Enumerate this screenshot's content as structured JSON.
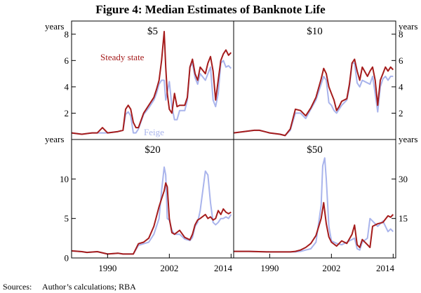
{
  "figure": {
    "title": "Figure 4: Median Estimates of Banknote Life",
    "sources_label": "Sources:",
    "sources_text": "Author’s calculations; RBA",
    "unit_label": "years",
    "colors": {
      "steady_state": "#a51c1c",
      "feige": "#a9b4ec",
      "frame": "#000000"
    }
  },
  "chart_data": [
    {
      "type": "line",
      "title": "$5",
      "panel": "top-left",
      "ylabel": "years",
      "ylim": [
        0,
        9
      ],
      "yticks": [
        2,
        4,
        6,
        8
      ],
      "xlim": [
        1983,
        2014.5
      ],
      "xticks": [],
      "label_steady": "Steady state",
      "label_feige": "Feige",
      "series": [
        {
          "name": "Steady state",
          "x": [
            1983,
            1985,
            1987,
            1988,
            1989,
            1990,
            1992,
            1993,
            1993.5,
            1994,
            1994.5,
            1995,
            1995.5,
            1996,
            1997,
            1998,
            1999,
            1999.5,
            2000,
            2000.5,
            2001,
            2001.3,
            2001.6,
            2002,
            2002.5,
            2003,
            2003.5,
            2004,
            2005,
            2005.5,
            2006,
            2006.5,
            2007,
            2007.5,
            2008,
            2009,
            2009.5,
            2010,
            2010.5,
            2011,
            2011.5,
            2012,
            2012.5,
            2013,
            2013.5,
            2014
          ],
          "values": [
            0.5,
            0.4,
            0.5,
            0.5,
            0.9,
            0.5,
            0.6,
            0.7,
            2.3,
            2.6,
            2.3,
            1.3,
            0.9,
            0.9,
            2.0,
            2.6,
            3.2,
            3.8,
            4.5,
            6.0,
            8.2,
            5.5,
            3.5,
            2.3,
            2.0,
            3.5,
            2.5,
            2.6,
            2.6,
            3.2,
            5.5,
            6.1,
            5.0,
            4.5,
            5.5,
            5.0,
            5.8,
            6.3,
            5.2,
            3.0,
            4.5,
            6.0,
            6.5,
            6.8,
            6.4,
            6.6
          ]
        },
        {
          "name": "Feige",
          "x": [
            1983,
            1985,
            1987,
            1988,
            1989,
            1990,
            1992,
            1993,
            1993.5,
            1994,
            1994.5,
            1995,
            1995.5,
            1996,
            1997,
            1998,
            1999,
            1999.5,
            2000,
            2000.5,
            2001,
            2001.3,
            2001.6,
            2002,
            2002.5,
            2003,
            2003.5,
            2004,
            2005,
            2005.5,
            2006,
            2006.5,
            2007,
            2007.5,
            2008,
            2009,
            2009.5,
            2010,
            2010.5,
            2011,
            2011.5,
            2012,
            2012.5,
            2013,
            2013.5,
            2014
          ],
          "values": [
            0.5,
            0.4,
            0.5,
            0.5,
            0.5,
            0.5,
            0.6,
            0.7,
            1.9,
            2.1,
            1.8,
            0.5,
            0.5,
            0.8,
            1.9,
            2.4,
            3.0,
            3.5,
            4.2,
            4.5,
            4.5,
            3.0,
            3.6,
            4.4,
            2.5,
            1.5,
            1.5,
            2.2,
            2.2,
            3.0,
            5.5,
            5.8,
            4.7,
            4.2,
            5.0,
            4.5,
            5.0,
            5.5,
            3.0,
            2.5,
            3.5,
            5.8,
            6.0,
            5.5,
            5.6,
            5.4
          ]
        }
      ]
    },
    {
      "type": "line",
      "title": "$10",
      "panel": "top-right",
      "ylabel": "years",
      "ylim": [
        0,
        9
      ],
      "yticks": [
        2,
        4,
        6,
        8
      ],
      "xlim": [
        1983,
        2014.5
      ],
      "xticks": [],
      "series": [
        {
          "name": "Steady state",
          "x": [
            1983,
            1985,
            1987,
            1988,
            1989,
            1990,
            1992,
            1993,
            1994,
            1995,
            1996,
            1997,
            1998,
            1999,
            2000,
            2000.5,
            2001,
            2001.5,
            2002,
            2002.5,
            2003,
            2003.5,
            2004,
            2005,
            2005.5,
            2006,
            2006.5,
            2007,
            2007.5,
            2008,
            2009,
            2009.5,
            2010,
            2010.5,
            2011,
            2011.5,
            2012,
            2012.5,
            2013,
            2013.5,
            2014
          ],
          "values": [
            0.5,
            0.6,
            0.7,
            0.7,
            0.6,
            0.5,
            0.4,
            0.3,
            0.8,
            2.3,
            2.2,
            1.8,
            2.4,
            3.2,
            4.6,
            5.4,
            5.0,
            4.0,
            3.5,
            3.0,
            2.2,
            2.5,
            2.9,
            3.1,
            4.2,
            5.8,
            6.1,
            5.2,
            4.5,
            5.5,
            4.8,
            5.2,
            5.5,
            4.5,
            2.6,
            4.5,
            5.0,
            5.5,
            5.2,
            5.5,
            5.3
          ]
        },
        {
          "name": "Feige",
          "x": [
            1983,
            1985,
            1987,
            1988,
            1989,
            1990,
            1992,
            1993,
            1994,
            1995,
            1996,
            1997,
            1998,
            1999,
            2000,
            2000.5,
            2001,
            2001.5,
            2002,
            2002.5,
            2003,
            2003.5,
            2004,
            2005,
            2005.5,
            2006,
            2006.5,
            2007,
            2007.5,
            2008,
            2009,
            2009.5,
            2010,
            2010.5,
            2011,
            2011.5,
            2012,
            2012.5,
            2013,
            2013.5,
            2014
          ],
          "values": [
            0.5,
            0.6,
            0.7,
            0.7,
            0.6,
            0.5,
            0.4,
            0.3,
            0.7,
            2.0,
            2.0,
            1.6,
            2.3,
            3.0,
            4.2,
            4.8,
            4.5,
            2.8,
            2.6,
            2.2,
            2.0,
            2.3,
            2.6,
            3.0,
            4.0,
            5.8,
            5.8,
            4.3,
            4.0,
            4.5,
            4.3,
            4.2,
            4.8,
            3.5,
            2.1,
            4.0,
            4.6,
            4.8,
            4.5,
            4.8,
            4.8
          ]
        }
      ]
    },
    {
      "type": "line",
      "title": "$20",
      "panel": "bottom-left",
      "ylabel": "years",
      "ylim": [
        0,
        15
      ],
      "yticks": [
        0,
        5,
        10
      ],
      "xlim": [
        1983,
        2014.5
      ],
      "xticks": [
        "1990",
        "2002",
        "2014"
      ],
      "xtick_values": [
        1990,
        2002,
        2014
      ],
      "series": [
        {
          "name": "Steady state",
          "x": [
            1983,
            1985,
            1986,
            1988,
            1990,
            1992,
            1993,
            1994,
            1995,
            1996,
            1997,
            1998,
            1999,
            2000,
            2000.5,
            2001,
            2001.3,
            2001.6,
            2002,
            2002.5,
            2003,
            2004,
            2005,
            2006,
            2006.5,
            2007,
            2007.5,
            2008,
            2009,
            2009.5,
            2010,
            2010.5,
            2011,
            2011.5,
            2012,
            2012.5,
            2013,
            2013.5,
            2014
          ],
          "values": [
            0.9,
            0.8,
            0.7,
            0.8,
            0.5,
            0.6,
            0.5,
            0.5,
            0.5,
            1.8,
            2.0,
            2.5,
            4.0,
            6.5,
            7.5,
            8.5,
            9.5,
            9.0,
            5.0,
            3.2,
            3.0,
            3.5,
            2.6,
            2.3,
            3.0,
            4.2,
            4.8,
            5.0,
            5.5,
            5.0,
            5.2,
            4.8,
            5.0,
            6.0,
            5.5,
            6.2,
            5.8,
            5.6,
            5.8
          ]
        },
        {
          "name": "Feige",
          "x": [
            1983,
            1985,
            1986,
            1988,
            1990,
            1992,
            1993,
            1994,
            1995,
            1996,
            1997,
            1998,
            1999,
            2000,
            2000.5,
            2001,
            2001.3,
            2001.6,
            2002,
            2002.5,
            2003,
            2004,
            2005,
            2006,
            2006.5,
            2007,
            2007.5,
            2008,
            2009,
            2009.5,
            2010,
            2010.5,
            2011,
            2011.5,
            2012,
            2012.5,
            2013,
            2013.5,
            2014
          ],
          "values": [
            0.9,
            0.8,
            0.7,
            0.8,
            0.5,
            0.6,
            0.5,
            0.5,
            0.5,
            1.6,
            1.8,
            2.0,
            3.0,
            5.0,
            8.5,
            11.5,
            10.5,
            5.0,
            4.8,
            3.5,
            3.0,
            3.0,
            2.4,
            2.2,
            2.6,
            4.0,
            4.5,
            6.0,
            11.0,
            10.5,
            7.0,
            4.5,
            4.2,
            4.5,
            5.0,
            5.0,
            5.2,
            5.0,
            5.5
          ]
        }
      ]
    },
    {
      "type": "line",
      "title": "$50",
      "panel": "bottom-right",
      "ylabel": "years",
      "ylim": [
        0,
        45
      ],
      "yticks": [
        15,
        30
      ],
      "xlim": [
        1983,
        2014.5
      ],
      "xticks": [
        "1990",
        "2002",
        "2014"
      ],
      "xtick_values": [
        1990,
        2002,
        2014
      ],
      "series": [
        {
          "name": "Steady state",
          "x": [
            1983,
            1986,
            1990,
            1994,
            1995,
            1996,
            1997,
            1998,
            1999,
            2000,
            2000.5,
            2001,
            2001.5,
            2002,
            2003,
            2004,
            2005,
            2006,
            2006.5,
            2007,
            2007.5,
            2008,
            2009,
            2009.5,
            2010,
            2011,
            2012,
            2013,
            2013.5,
            2014
          ],
          "values": [
            2.5,
            2.5,
            2.3,
            2.3,
            2.5,
            3.0,
            4.0,
            5.5,
            8.5,
            15.0,
            21.0,
            13.0,
            8.0,
            6.0,
            4.5,
            6.5,
            5.5,
            9.0,
            12.5,
            5.0,
            4.0,
            7.0,
            5.0,
            4.0,
            12.0,
            13.0,
            13.5,
            16.0,
            15.5,
            16.5
          ]
        },
        {
          "name": "Feige",
          "x": [
            1983,
            1986,
            1990,
            1994,
            1995,
            1996,
            1997,
            1998,
            1999,
            2000,
            2000.3,
            2000.7,
            2001,
            2001.5,
            2002,
            2003,
            2004,
            2005,
            2006,
            2006.5,
            2007,
            2007.5,
            2008,
            2009,
            2009.5,
            2010,
            2011,
            2012,
            2013,
            2013.5,
            2014
          ],
          "values": [
            2.5,
            2.5,
            2.3,
            2.3,
            2.3,
            2.5,
            3.0,
            3.5,
            6.0,
            20.0,
            35.0,
            38.0,
            30.0,
            12.0,
            6.5,
            5.5,
            5.0,
            6.0,
            7.0,
            7.5,
            3.5,
            3.0,
            6.0,
            7.5,
            15.0,
            14.0,
            12.0,
            14.0,
            10.0,
            11.0,
            10.0
          ]
        }
      ]
    }
  ]
}
